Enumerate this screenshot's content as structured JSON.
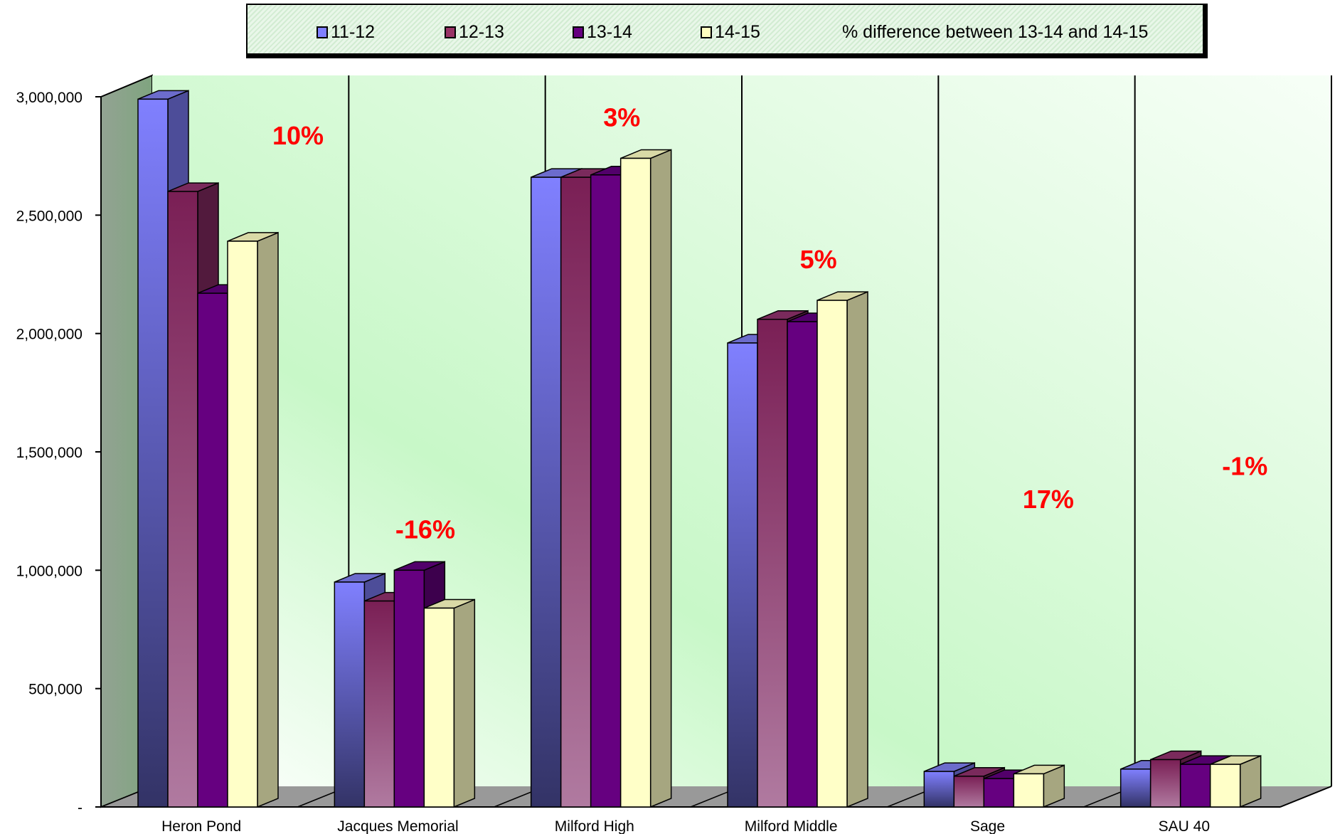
{
  "chart_data": {
    "type": "bar",
    "categories": [
      "Heron Pond",
      "Jacques Memorial",
      "Milford High",
      "Milford Middle",
      "Sage",
      "SAU 40"
    ],
    "series": [
      {
        "name": "11-12",
        "color": "#8080ff",
        "values": [
          2990000,
          950000,
          2660000,
          1960000,
          150000,
          160000
        ]
      },
      {
        "name": "12-13",
        "color": "#993366",
        "values": [
          2600000,
          870000,
          2660000,
          2060000,
          130000,
          200000
        ]
      },
      {
        "name": "13-14",
        "color": "#660080",
        "values": [
          2170000,
          1000000,
          2670000,
          2050000,
          120000,
          180000
        ]
      },
      {
        "name": "14-15",
        "color": "#ffffc0",
        "values": [
          2390000,
          840000,
          2740000,
          2140000,
          140000,
          180000
        ]
      }
    ],
    "annotation_series": "% difference between 13-14 and 14-15",
    "annotations": [
      "10%",
      "-16%",
      "3%",
      "5%",
      "17%",
      "-1%"
    ],
    "yticks": [
      {
        "value": 0,
        "label": "-"
      },
      {
        "value": 500000,
        "label": "500,000"
      },
      {
        "value": 1000000,
        "label": "1,000,000"
      },
      {
        "value": 1500000,
        "label": "1,500,000"
      },
      {
        "value": 2000000,
        "label": "2,000,000"
      },
      {
        "value": 2500000,
        "label": "2,500,000"
      },
      {
        "value": 3000000,
        "label": "3,000,000"
      }
    ],
    "ylim": [
      0,
      3000000
    ],
    "grid": true,
    "legend_position": "top",
    "title": "",
    "xlabel": "",
    "ylabel": ""
  }
}
